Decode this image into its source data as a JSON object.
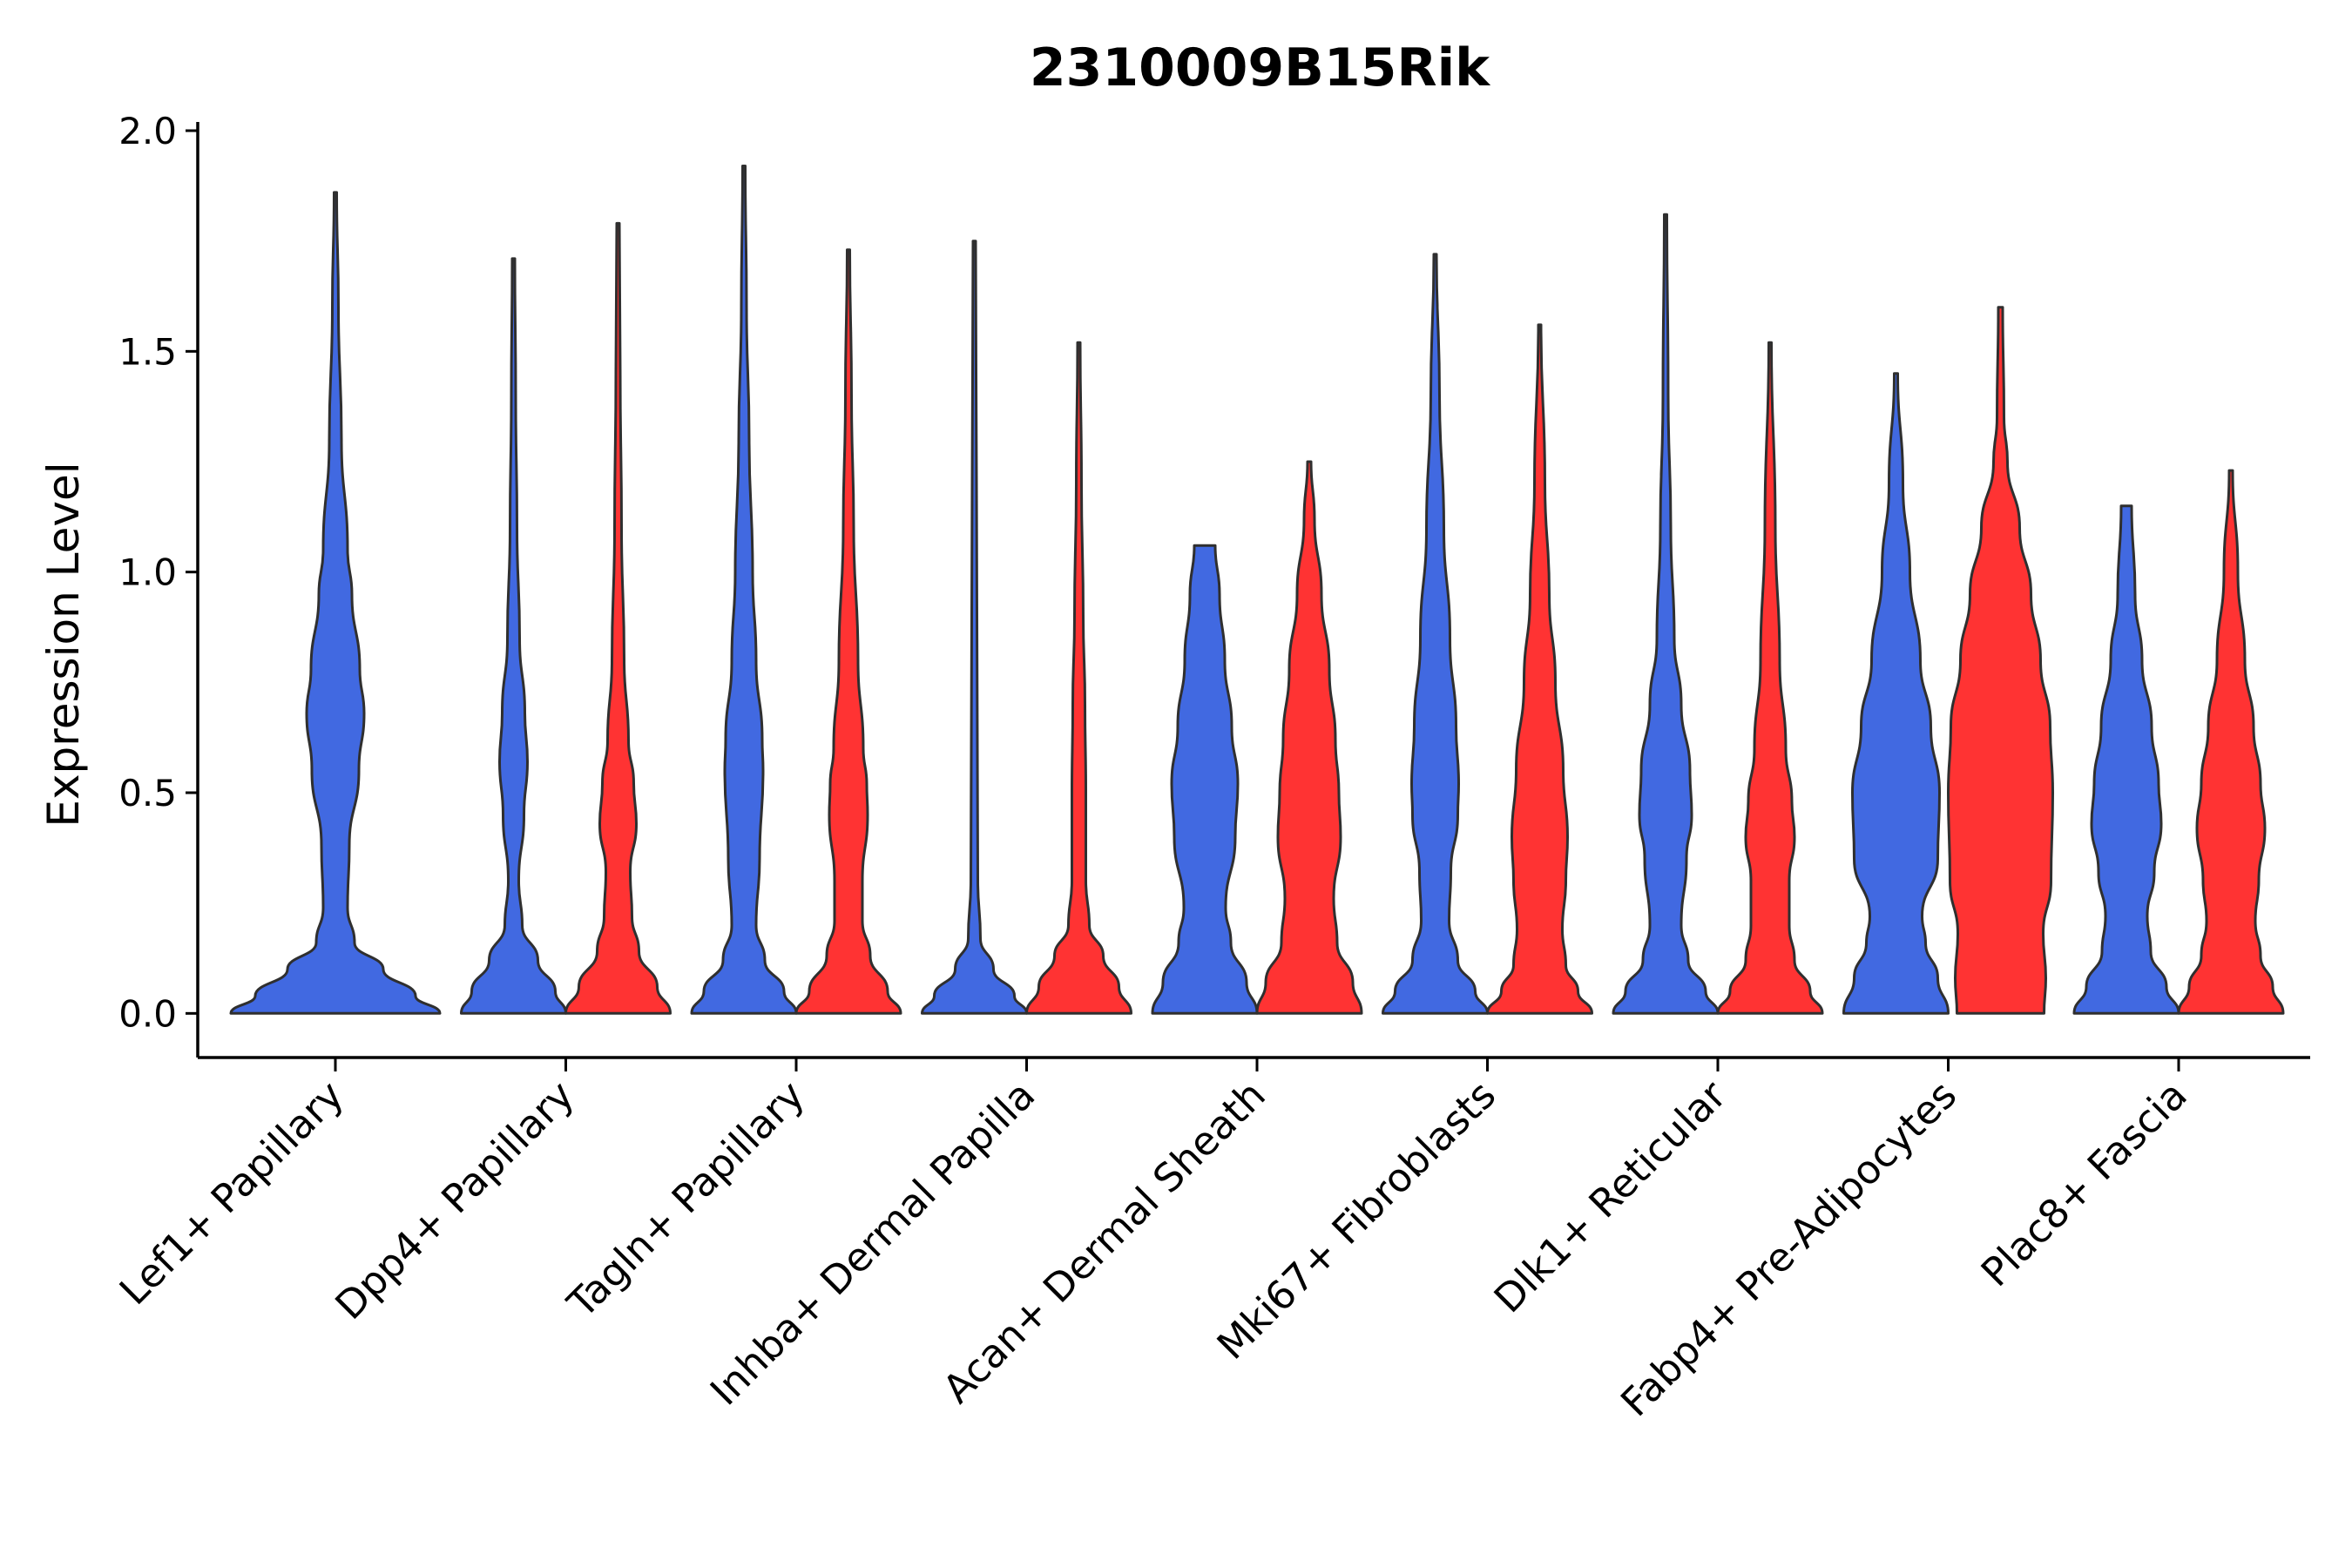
{
  "chart_data": {
    "type": "violin",
    "title": "2310009B15Rik",
    "xlabel": "",
    "ylabel": "Expression Level",
    "ylim": [
      -0.1,
      2.0
    ],
    "yticks": [
      "0.0",
      "0.5",
      "1.0",
      "1.5",
      "2.0"
    ],
    "grid": false,
    "legend": "none",
    "colors": {
      "blue": "#4169E1",
      "red": "#FF3333",
      "outline": "#2f2f2f"
    },
    "categories": [
      "Lef1+ Papillary",
      "Dpp4+ Papillary",
      "Tagln+ Papillary",
      "Inhba+ Dermal Papilla",
      "Acan+ Dermal Sheath",
      "Mki67+ Fibroblasts",
      "Dlk1+ Reticular",
      "Fabp4+ Pre-Adipocytes",
      "Plac8+ Fascia"
    ],
    "series": [
      {
        "name": "blue",
        "color": "#4169E1",
        "max": [
          1.86,
          1.71,
          1.92,
          1.75,
          1.06,
          1.72,
          1.81,
          1.45,
          1.15
        ]
      },
      {
        "name": "red",
        "color": "#FF3333",
        "max": [
          null,
          1.79,
          1.73,
          1.52,
          1.25,
          1.56,
          1.52,
          1.6,
          1.23
        ]
      }
    ]
  }
}
